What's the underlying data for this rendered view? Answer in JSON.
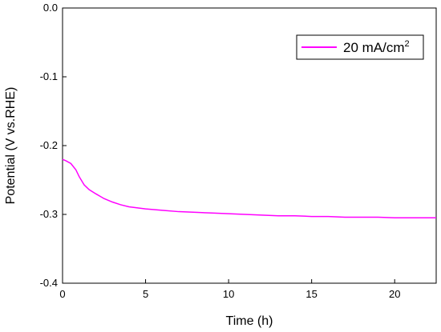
{
  "chart_data": {
    "type": "line",
    "xlabel": "Time (h)",
    "ylabel": "Potential (V vs.RHE)",
    "xlim": [
      0,
      22.5
    ],
    "ylim": [
      -0.4,
      0.0
    ],
    "x_ticks": [
      0,
      5,
      10,
      15,
      20
    ],
    "x_tick_labels": [
      "0",
      "5",
      "10",
      "15",
      "20"
    ],
    "y_ticks": [
      0.0,
      -0.1,
      -0.2,
      -0.3,
      -0.4
    ],
    "y_tick_labels": [
      "0.0",
      "-0.1",
      "-0.2",
      "-0.3",
      "-0.4"
    ],
    "grid": false,
    "legend_position": "top-right",
    "series": [
      {
        "name": "20 mA/cm",
        "name_superscript": "2",
        "color": "#ff00ff",
        "x": [
          0,
          0.2,
          0.5,
          0.8,
          1.0,
          1.3,
          1.6,
          2.0,
          2.5,
          3.0,
          3.5,
          4.0,
          5.0,
          6.0,
          7.0,
          8.0,
          9.0,
          10.0,
          11.0,
          12.0,
          13.0,
          14.0,
          15.0,
          16.0,
          17.0,
          18.0,
          19.0,
          20.0,
          21.0,
          22.0,
          22.5
        ],
        "y": [
          -0.22,
          -0.222,
          -0.226,
          -0.235,
          -0.245,
          -0.257,
          -0.264,
          -0.27,
          -0.277,
          -0.282,
          -0.286,
          -0.289,
          -0.292,
          -0.294,
          -0.296,
          -0.297,
          -0.298,
          -0.299,
          -0.3,
          -0.301,
          -0.302,
          -0.302,
          -0.303,
          -0.303,
          -0.304,
          -0.304,
          -0.304,
          -0.305,
          -0.305,
          -0.305,
          -0.305
        ]
      }
    ]
  }
}
